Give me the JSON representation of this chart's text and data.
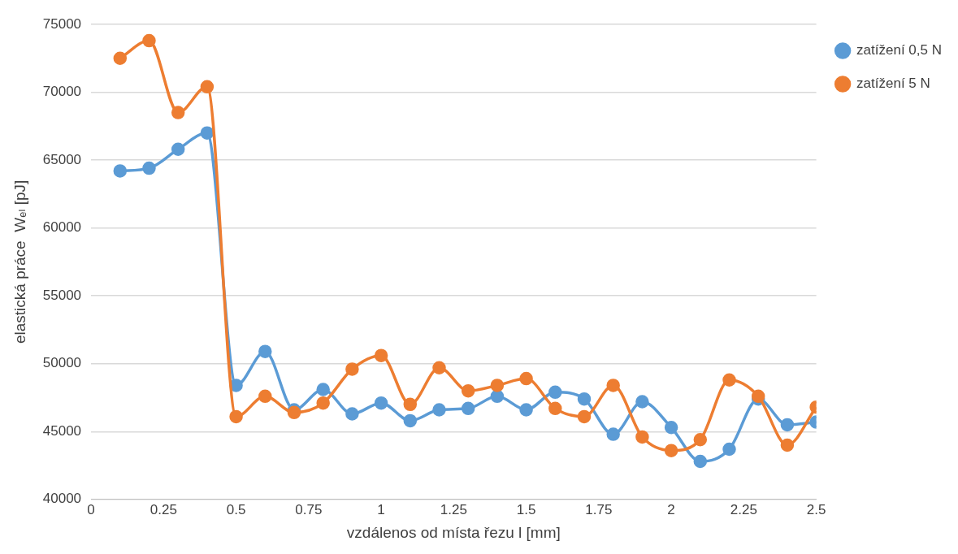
{
  "chart_data": {
    "type": "line",
    "xlabel": "vzdálenos od místa řezu l [mm]",
    "ylabel": "elastická práce  Wₑₗ [pJ]",
    "x": [
      0.1,
      0.2,
      0.3,
      0.4,
      0.5,
      0.6,
      0.7,
      0.8,
      0.9,
      1.0,
      1.1,
      1.2,
      1.3,
      1.4,
      1.5,
      1.6,
      1.7,
      1.8,
      1.9,
      2.0,
      2.1,
      2.2,
      2.3,
      2.4,
      2.5
    ],
    "series": [
      {
        "name": "zatížení 0,5 N",
        "color": "#5b9bd5",
        "values": [
          64200,
          64400,
          65800,
          67000,
          48400,
          50900,
          46600,
          48100,
          46300,
          47100,
          45800,
          46600,
          46700,
          47600,
          46600,
          47900,
          47400,
          44800,
          47200,
          45300,
          42800,
          43700,
          47400,
          45500,
          45700
        ]
      },
      {
        "name": "zatížení 5 N",
        "color": "#ed7d31",
        "values": [
          72500,
          73800,
          68500,
          70400,
          46100,
          47600,
          46400,
          47100,
          49600,
          50600,
          47000,
          49700,
          48000,
          48400,
          48900,
          46700,
          46100,
          48400,
          44600,
          43600,
          44400,
          48800,
          47600,
          44000,
          46800
        ]
      }
    ],
    "xlim": [
      0,
      2.5
    ],
    "xticks": [
      0,
      0.25,
      0.5,
      0.75,
      1,
      1.25,
      1.5,
      1.75,
      2,
      2.25,
      2.5
    ],
    "ylim": [
      40000,
      75000
    ],
    "yticks": [
      40000,
      45000,
      50000,
      55000,
      60000,
      65000,
      70000,
      75000
    ],
    "grid": "y",
    "legend": "top right",
    "marker": "circle",
    "line_style": "solid"
  }
}
